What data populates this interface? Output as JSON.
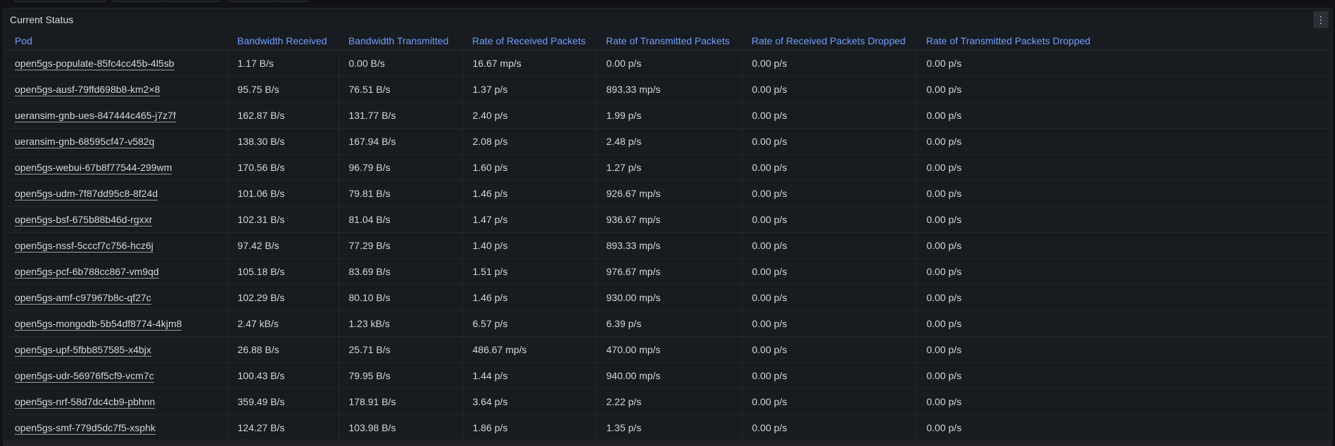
{
  "panel": {
    "title": "Current Status",
    "menu_icon": "vertical-ellipsis-icon",
    "menu_glyph": "⋮"
  },
  "table": {
    "columns": [
      "Pod",
      "Bandwidth Received",
      "Bandwidth Transmitted",
      "Rate of Received Packets",
      "Rate of Transmitted Packets",
      "Rate of Received Packets Dropped",
      "Rate of Transmitted Packets Dropped"
    ],
    "rows": [
      [
        "open5gs-populate-85fc4cc45b-4l5sb",
        "1.17 B/s",
        "0.00 B/s",
        "16.67 mp/s",
        "0.00 p/s",
        "0.00 p/s",
        "0.00 p/s"
      ],
      [
        "open5gs-ausf-79ffd698b8-km2×8",
        "95.75 B/s",
        "76.51 B/s",
        "1.37 p/s",
        "893.33 mp/s",
        "0.00 p/s",
        "0.00 p/s"
      ],
      [
        "ueransim-gnb-ues-847444c465-j7z7f",
        "162.87 B/s",
        "131.77 B/s",
        "2.40 p/s",
        "1.99 p/s",
        "0.00 p/s",
        "0.00 p/s"
      ],
      [
        "ueransim-gnb-68595cf47-v582q",
        "138.30 B/s",
        "167.94 B/s",
        "2.08 p/s",
        "2.48 p/s",
        "0.00 p/s",
        "0.00 p/s"
      ],
      [
        "open5gs-webui-67b8f77544-299wm",
        "170.56 B/s",
        "96.79 B/s",
        "1.60 p/s",
        "1.27 p/s",
        "0.00 p/s",
        "0.00 p/s"
      ],
      [
        "open5gs-udm-7f87dd95c8-8f24d",
        "101.06 B/s",
        "79.81 B/s",
        "1.46 p/s",
        "926.67 mp/s",
        "0.00 p/s",
        "0.00 p/s"
      ],
      [
        "open5gs-bsf-675b88b46d-rgxxr",
        "102.31 B/s",
        "81.04 B/s",
        "1.47 p/s",
        "936.67 mp/s",
        "0.00 p/s",
        "0.00 p/s"
      ],
      [
        "open5gs-nssf-5cccf7c756-hcz6j",
        "97.42 B/s",
        "77.29 B/s",
        "1.40 p/s",
        "893.33 mp/s",
        "0.00 p/s",
        "0.00 p/s"
      ],
      [
        "open5gs-pcf-6b788cc867-vm9qd",
        "105.18 B/s",
        "83.69 B/s",
        "1.51 p/s",
        "976.67 mp/s",
        "0.00 p/s",
        "0.00 p/s"
      ],
      [
        "open5gs-amf-c97967b8c-qf27c",
        "102.29 B/s",
        "80.10 B/s",
        "1.46 p/s",
        "930.00 mp/s",
        "0.00 p/s",
        "0.00 p/s"
      ],
      [
        "open5gs-mongodb-5b54df8774-4kjm8",
        "2.47 kB/s",
        "1.23 kB/s",
        "6.57 p/s",
        "6.39 p/s",
        "0.00 p/s",
        "0.00 p/s"
      ],
      [
        "open5gs-upf-5fbb857585-x4bjx",
        "26.88 B/s",
        "25.71 B/s",
        "486.67 mp/s",
        "470.00 mp/s",
        "0.00 p/s",
        "0.00 p/s"
      ],
      [
        "open5gs-udr-56976f5cf9-vcm7c",
        "100.43 B/s",
        "79.95 B/s",
        "1.44 p/s",
        "940.00 mp/s",
        "0.00 p/s",
        "0.00 p/s"
      ],
      [
        "open5gs-nrf-58d7dc4cb9-pbhnn",
        "359.49 B/s",
        "178.91 B/s",
        "3.64 p/s",
        "2.22 p/s",
        "0.00 p/s",
        "0.00 p/s"
      ],
      [
        "open5gs-smf-779d5dc7f5-xsphk",
        "124.27 B/s",
        "103.98 B/s",
        "1.86 p/s",
        "1.35 p/s",
        "0.00 p/s",
        "0.00 p/s"
      ]
    ]
  },
  "colors": {
    "background": "#111217",
    "panel": "#181b1f",
    "header_link": "#6e9fff",
    "text": "#d6d7de"
  }
}
